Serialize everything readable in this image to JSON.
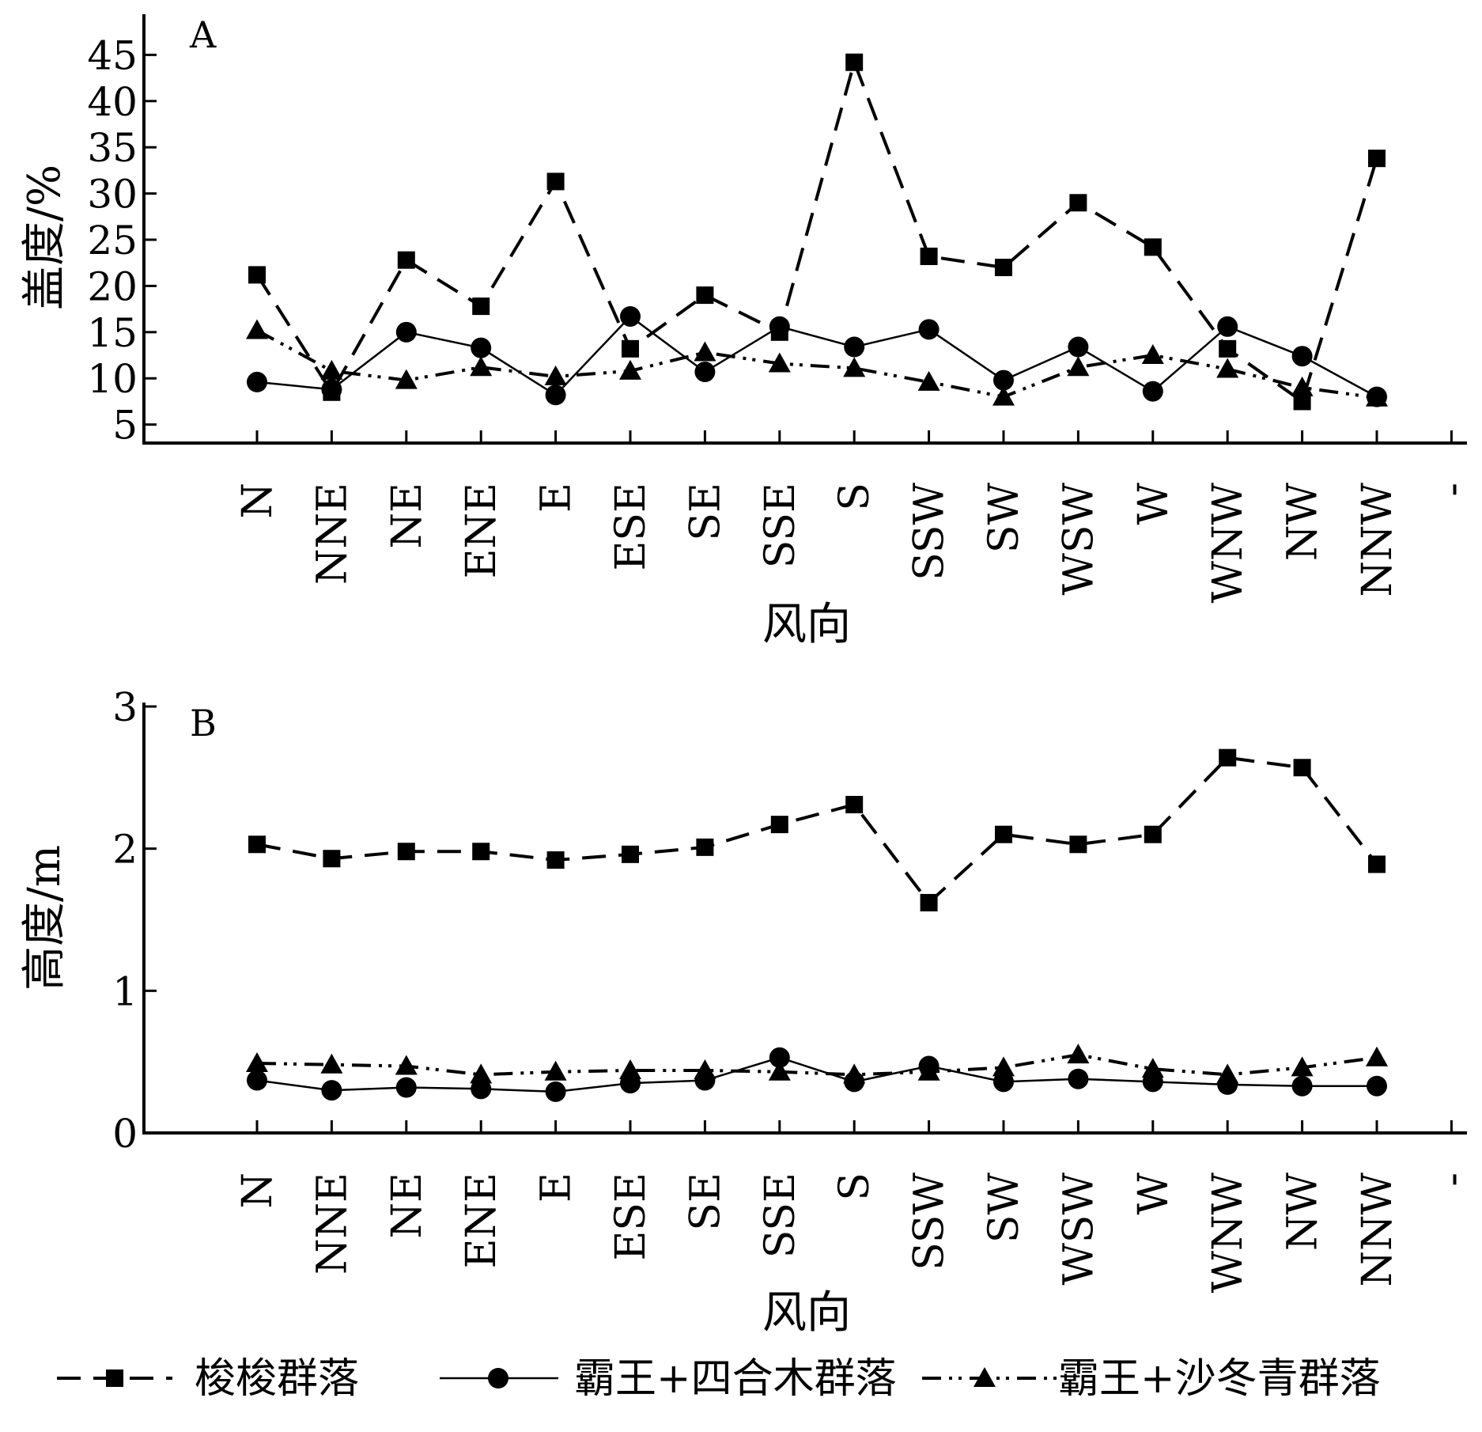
{
  "chart_data": [
    {
      "type": "line",
      "panel_label": "A",
      "xlabel": "风向",
      "ylabel": "盖度/%",
      "yticks": [
        5,
        10,
        15,
        20,
        25,
        30,
        35,
        40,
        45
      ],
      "ylim": [
        3,
        47
      ],
      "categories": [
        "N",
        "NNE",
        "NE",
        "ENE",
        "E",
        "ESE",
        "SE",
        "SSE",
        "S",
        "SSW",
        "SW",
        "WSW",
        "W",
        "WNW",
        "NW",
        "NNW",
        "-"
      ],
      "series": [
        {
          "name": "梭梭群落",
          "values": [
            21.2,
            8.5,
            22.8,
            17.8,
            31.3,
            13.2,
            19.0,
            15.0,
            44.2,
            23.2,
            22.0,
            29.0,
            24.2,
            13.2,
            7.5,
            33.8,
            null
          ]
        },
        {
          "name": "霸王+四合木群落",
          "values": [
            9.6,
            8.8,
            15.0,
            13.3,
            8.2,
            16.7,
            10.7,
            15.6,
            13.4,
            15.3,
            9.8,
            13.4,
            8.6,
            15.6,
            12.4,
            8.0,
            null
          ]
        },
        {
          "name": "霸王+沙冬青群落",
          "values": [
            15.2,
            10.8,
            9.8,
            11.2,
            10.2,
            10.8,
            12.8,
            11.6,
            11.1,
            9.6,
            8.0,
            11.2,
            12.5,
            11.0,
            9.0,
            7.9,
            null
          ]
        }
      ]
    },
    {
      "type": "line",
      "panel_label": "B",
      "xlabel": "风向",
      "ylabel": "高度/m",
      "yticks": [
        0,
        1,
        2,
        3
      ],
      "ylim": [
        0,
        3
      ],
      "categories": [
        "N",
        "NNE",
        "NE",
        "ENE",
        "E",
        "ESE",
        "SE",
        "SSE",
        "S",
        "SSW",
        "SW",
        "WSW",
        "W",
        "WNW",
        "NW",
        "NNW",
        "-"
      ],
      "series": [
        {
          "name": "梭梭群落",
          "values": [
            2.03,
            1.93,
            1.98,
            1.98,
            1.92,
            1.96,
            2.01,
            2.17,
            2.31,
            1.62,
            2.1,
            2.03,
            2.1,
            2.64,
            2.57,
            1.89,
            null
          ]
        },
        {
          "name": "霸王+四合木群落",
          "values": [
            0.37,
            0.3,
            0.32,
            0.31,
            0.29,
            0.35,
            0.37,
            0.53,
            0.36,
            0.47,
            0.36,
            0.38,
            0.36,
            0.34,
            0.33,
            0.33,
            null
          ]
        },
        {
          "name": "霸王+沙冬青群落",
          "values": [
            0.49,
            0.48,
            0.47,
            0.41,
            0.43,
            0.44,
            0.44,
            0.43,
            0.41,
            0.43,
            0.46,
            0.55,
            0.45,
            0.41,
            0.46,
            0.53,
            null
          ]
        }
      ]
    }
  ],
  "legend": [
    {
      "label": "梭梭群落",
      "marker": "square",
      "dash": "dashed"
    },
    {
      "label": "霸王+四合木群落",
      "marker": "circle",
      "dash": "solid"
    },
    {
      "label": "霸王+沙冬青群落",
      "marker": "triangle",
      "dash": "dash-dot-dot"
    }
  ]
}
